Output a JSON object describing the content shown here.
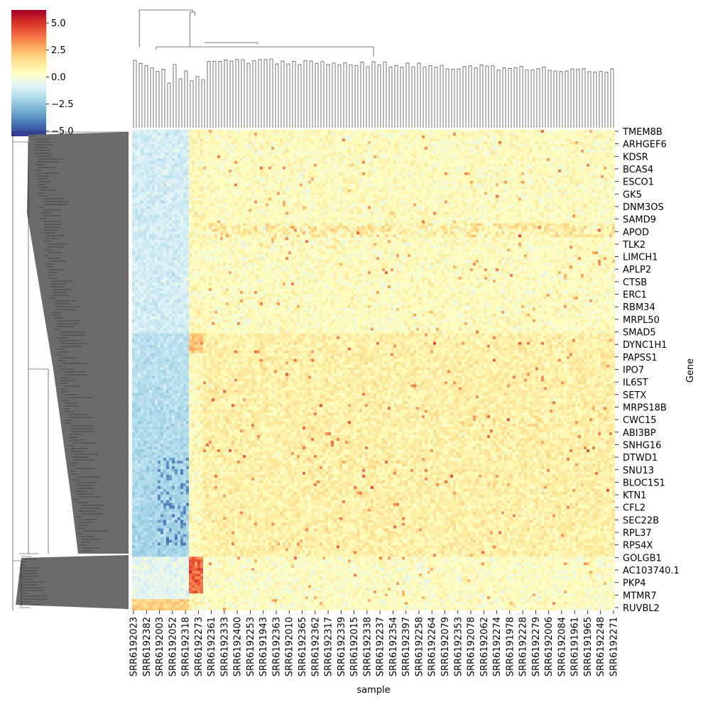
{
  "chart_data": {
    "type": "heatmap",
    "subtype": "clustermap",
    "colormap": "RdYlBu_r",
    "colorbar": {
      "min": -5.5,
      "max": 6.2,
      "ticks": [
        5.0,
        2.5,
        0.0,
        -2.5,
        -5.0
      ],
      "tick_labels": [
        "5.0",
        "2.5",
        "0.0",
        "−2.5",
        "−5.0"
      ]
    },
    "xlabel": "sample",
    "ylabel": "Gene",
    "x_tick_labels": [
      "SRR6192023",
      "SRR6192382",
      "SRR6192003",
      "SRR6192052",
      "SRR6192318",
      "SRR6192273",
      "SRR6192361",
      "SRR6192333",
      "SRR6192400",
      "SRR6192253",
      "SRR6191943",
      "SRR6192363",
      "SRR6192010",
      "SRR6192365",
      "SRR6192362",
      "SRR6192317",
      "SRR6192339",
      "SRR6192015",
      "SRR6192338",
      "SRR6192237",
      "SRR6192354",
      "SRR6192397",
      "SRR6192258",
      "SRR6192264",
      "SRR6192079",
      "SRR6192353",
      "SRR6192078",
      "SRR6192062",
      "SRR6192274",
      "SRR6191978",
      "SRR6192228",
      "SRR6192279",
      "SRR6192006",
      "SRR6192084",
      "SRR6191961",
      "SRR6191965",
      "SRR6192248",
      "SRR6192271"
    ],
    "y_tick_labels": [
      "TMEM8B",
      "ARHGEF6",
      "KDSR",
      "BCAS4",
      "ESCO1",
      "GK5",
      "DNM3OS",
      "SAMD9",
      "APOD",
      "TLK2",
      "LIMCH1",
      "APLP2",
      "CTSB",
      "ERC1",
      "RBM34",
      "MRPL50",
      "SMAD5",
      "DYNC1H1",
      "PAPSS1",
      "IPO7",
      "IL6ST",
      "SETX",
      "MRPS18B",
      "CWC15",
      "ABI3BP",
      "SNHG16",
      "DTWD1",
      "SNU13",
      "BLOC1S1",
      "KTN1",
      "CFL2",
      "SEC22B",
      "RPL37",
      "RPS4X",
      "GOLGB1",
      "AC103740.1",
      "PKP4",
      "MTMR7",
      "RUVBL2"
    ],
    "column_groups": [
      {
        "samples": "SRR6192023–SRR6192318",
        "mean": -1.6
      },
      {
        "samples": "SRR6192273",
        "mean": 0.5
      },
      {
        "samples": "SRR6192361–SRR6192271",
        "mean": 0.6
      }
    ],
    "row_groups": [
      {
        "genes": "TMEM8B–SMAD5",
        "mean": 0.4
      },
      {
        "genes": "DYNC1H1–RPS4X",
        "mean": 0.9
      },
      {
        "genes": "GOLGB1–RUVBL2",
        "mean": 0.3
      }
    ],
    "dendrograms": [
      "rows",
      "columns"
    ]
  }
}
